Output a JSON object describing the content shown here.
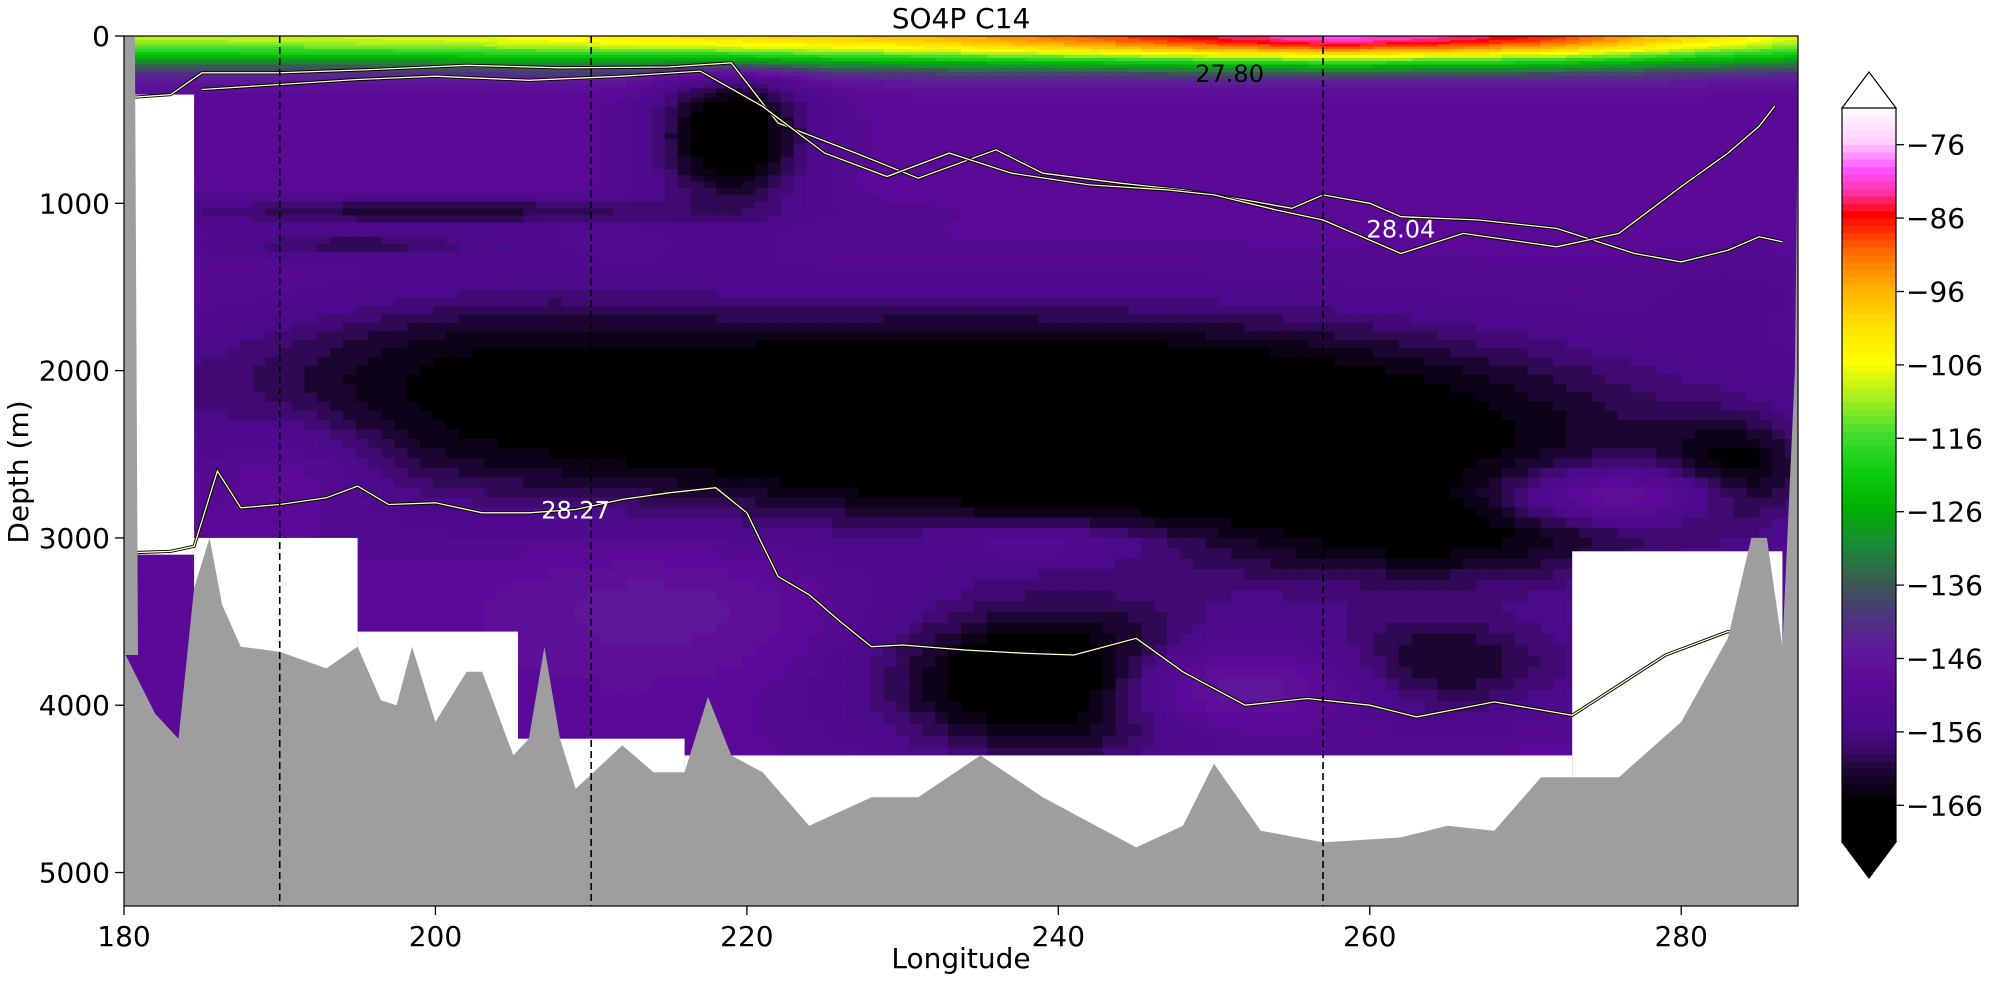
{
  "chart_data": {
    "type": "heatmap",
    "title": "SO4P C14",
    "xlabel": "Longitude",
    "ylabel": "Depth (m)",
    "xlim": [
      180,
      287.5
    ],
    "ylim": [
      5200,
      0
    ],
    "y_inverted": true,
    "x_ticks": [
      180,
      200,
      220,
      240,
      260,
      280
    ],
    "y_ticks": [
      0,
      1000,
      2000,
      3000,
      4000,
      5000
    ],
    "colorbar": {
      "ticks": [
        -76,
        -86,
        -96,
        -106,
        -116,
        -126,
        -136,
        -146,
        -156,
        -166
      ],
      "range": [
        -171,
        -71
      ],
      "extend": "both",
      "stops": [
        {
          "v": -171,
          "color": "#000000"
        },
        {
          "v": -166,
          "color": "#000000"
        },
        {
          "v": -162,
          "color": "#1a0630"
        },
        {
          "v": -159,
          "color": "#3a0a66"
        },
        {
          "v": -156,
          "color": "#4b0a8a"
        },
        {
          "v": -150,
          "color": "#5a0a96"
        },
        {
          "v": -145,
          "color": "#5f1a9a"
        },
        {
          "v": -140,
          "color": "#4a3a78"
        },
        {
          "v": -136,
          "color": "#3a5a50"
        },
        {
          "v": -131,
          "color": "#1a8a3a"
        },
        {
          "v": -126,
          "color": "#00b000"
        },
        {
          "v": -121,
          "color": "#10cc10"
        },
        {
          "v": -116,
          "color": "#40dd30"
        },
        {
          "v": -111,
          "color": "#a8ef20"
        },
        {
          "v": -106,
          "color": "#ffff00"
        },
        {
          "v": -101,
          "color": "#ffe000"
        },
        {
          "v": -96,
          "color": "#ffb000"
        },
        {
          "v": -91,
          "color": "#ff6a00"
        },
        {
          "v": -86,
          "color": "#ff0000"
        },
        {
          "v": -83,
          "color": "#ff30a0"
        },
        {
          "v": -80,
          "color": "#ff50ff"
        },
        {
          "v": -76,
          "color": "#ffd0ff"
        },
        {
          "v": -71,
          "color": "#ffffff"
        }
      ]
    },
    "contour_labels": [
      {
        "text": "27.80",
        "x": 251.0,
        "y": 220
      },
      {
        "text": "28.04",
        "x": 262.0,
        "y": 1150
      },
      {
        "text": "28.27",
        "x": 209.0,
        "y": 2830
      }
    ],
    "section_lines_x": [
      190,
      210,
      257
    ],
    "isopycnals": [
      {
        "name": "27.80",
        "points": [
          [
            180,
            370
          ],
          [
            183,
            350
          ],
          [
            185,
            220
          ],
          [
            190,
            220
          ],
          [
            196,
            200
          ],
          [
            202,
            175
          ],
          [
            208,
            190
          ],
          [
            215,
            185
          ],
          [
            219,
            160
          ],
          [
            222,
            520
          ],
          [
            227,
            700
          ],
          [
            231,
            850
          ],
          [
            236,
            680
          ],
          [
            239,
            820
          ],
          [
            244,
            880
          ],
          [
            248,
            920
          ],
          [
            252,
            980
          ],
          [
            255,
            1030
          ],
          [
            257,
            950
          ],
          [
            260,
            1000
          ],
          [
            262,
            1080
          ],
          [
            267,
            1100
          ],
          [
            272,
            1150
          ],
          [
            277,
            1300
          ],
          [
            280,
            1350
          ],
          [
            283,
            1280
          ],
          [
            285,
            1200
          ],
          [
            286.5,
            1230
          ]
        ]
      },
      {
        "name": "28.04",
        "points": [
          [
            185,
            320
          ],
          [
            190,
            290
          ],
          [
            195,
            260
          ],
          [
            200,
            240
          ],
          [
            206,
            265
          ],
          [
            212,
            240
          ],
          [
            217,
            210
          ],
          [
            221,
            420
          ],
          [
            225,
            700
          ],
          [
            229,
            840
          ],
          [
            233,
            700
          ],
          [
            237,
            820
          ],
          [
            242,
            890
          ],
          [
            247,
            920
          ],
          [
            250,
            950
          ],
          [
            254,
            1040
          ],
          [
            257,
            1100
          ],
          [
            262,
            1300
          ],
          [
            266,
            1180
          ],
          [
            272,
            1260
          ],
          [
            276,
            1180
          ],
          [
            280,
            900
          ],
          [
            283,
            700
          ],
          [
            285,
            540
          ],
          [
            286,
            420
          ]
        ]
      },
      {
        "name": "28.27",
        "points": [
          [
            180,
            3090
          ],
          [
            183,
            3080
          ],
          [
            184.5,
            3050
          ],
          [
            186,
            2600
          ],
          [
            187.5,
            2820
          ],
          [
            190,
            2800
          ],
          [
            193,
            2760
          ],
          [
            195,
            2690
          ],
          [
            197,
            2800
          ],
          [
            200,
            2790
          ],
          [
            203,
            2850
          ],
          [
            206,
            2850
          ],
          [
            209,
            2830
          ],
          [
            212,
            2770
          ],
          [
            215,
            2730
          ],
          [
            218,
            2700
          ],
          [
            220,
            2850
          ],
          [
            222,
            3230
          ],
          [
            224,
            3340
          ],
          [
            226,
            3500
          ],
          [
            228,
            3650
          ],
          [
            230,
            3640
          ],
          [
            234,
            3670
          ],
          [
            238,
            3690
          ],
          [
            241,
            3700
          ],
          [
            245,
            3600
          ],
          [
            248,
            3800
          ],
          [
            252,
            4000
          ],
          [
            256,
            3960
          ],
          [
            260,
            4000
          ],
          [
            263,
            4070
          ],
          [
            268,
            3980
          ],
          [
            273,
            4060
          ],
          [
            279,
            3700
          ],
          [
            283,
            3560
          ],
          [
            285,
            3580
          ]
        ]
      }
    ],
    "bathymetry": [
      [
        180,
        3680
      ],
      [
        182,
        4050
      ],
      [
        183.5,
        4200
      ],
      [
        184.5,
        3300
      ],
      [
        185.5,
        3000
      ],
      [
        186.3,
        3400
      ],
      [
        187.5,
        3650
      ],
      [
        190,
        3680
      ],
      [
        193,
        3780
      ],
      [
        195,
        3650
      ],
      [
        196.5,
        3970
      ],
      [
        197.5,
        4000
      ],
      [
        198.5,
        3650
      ],
      [
        200,
        4100
      ],
      [
        202,
        3800
      ],
      [
        203,
        3800
      ],
      [
        205,
        4300
      ],
      [
        206,
        4200
      ],
      [
        207,
        3650
      ],
      [
        208,
        4200
      ],
      [
        209,
        4500
      ],
      [
        212,
        4240
      ],
      [
        214,
        4400
      ],
      [
        216,
        4400
      ],
      [
        217.5,
        3950
      ],
      [
        219,
        4300
      ],
      [
        221,
        4400
      ],
      [
        224,
        4720
      ],
      [
        228,
        4550
      ],
      [
        231,
        4550
      ],
      [
        235,
        4300
      ],
      [
        239,
        4550
      ],
      [
        245,
        4850
      ],
      [
        248,
        4720
      ],
      [
        250,
        4350
      ],
      [
        253,
        4750
      ],
      [
        257,
        4820
      ],
      [
        262,
        4790
      ],
      [
        265,
        4720
      ],
      [
        268,
        4750
      ],
      [
        271,
        4430
      ],
      [
        276,
        4430
      ],
      [
        280,
        4100
      ],
      [
        283,
        3600
      ],
      [
        284.5,
        3000
      ],
      [
        285.5,
        3000
      ],
      [
        286.5,
        3650
      ],
      [
        287.3,
        2000
      ],
      [
        287.5,
        400
      ],
      [
        287.5,
        5200
      ],
      [
        180,
        5200
      ]
    ],
    "bathymetry_left_wall": [
      [
        180,
        0
      ],
      [
        180.7,
        0
      ],
      [
        180.9,
        3700
      ],
      [
        180,
        3700
      ]
    ],
    "data_mask_blocks": [
      {
        "x0": 180,
        "x1": 184.5,
        "y0": 350,
        "y1": 3100
      },
      {
        "x0": 184.5,
        "x1": 195,
        "y0": 3000,
        "y1": 5200
      },
      {
        "x0": 195,
        "x1": 205.3,
        "y0": 3560,
        "y1": 5200
      },
      {
        "x0": 205.3,
        "x1": 216,
        "y0": 4200,
        "y1": 5200
      },
      {
        "x0": 216,
        "x1": 273,
        "y0": 4300,
        "y1": 5200
      },
      {
        "x0": 273,
        "x1": 286.5,
        "y0": 3080,
        "y1": 5200
      }
    ],
    "field": {
      "background": -150,
      "surface": [
        {
          "x": 185,
          "v": -110
        },
        {
          "x": 200,
          "v": -108
        },
        {
          "x": 215,
          "v": -103
        },
        {
          "x": 230,
          "v": -98
        },
        {
          "x": 240,
          "v": -92
        },
        {
          "x": 250,
          "v": -85
        },
        {
          "x": 258,
          "v": -80
        },
        {
          "x": 265,
          "v": -83
        },
        {
          "x": 272,
          "v": -88
        },
        {
          "x": 280,
          "v": -100
        },
        {
          "x": 287,
          "v": -108
        }
      ],
      "blobs": [
        {
          "x": 219,
          "y": 600,
          "rx": 5,
          "ry": 450,
          "v": -170
        },
        {
          "x": 226,
          "y": 2200,
          "rx": 40,
          "ry": 550,
          "v": -170
        },
        {
          "x": 246,
          "y": 2400,
          "rx": 30,
          "ry": 600,
          "v": -172
        },
        {
          "x": 205,
          "y": 2100,
          "rx": 14,
          "ry": 500,
          "v": -166
        },
        {
          "x": 264,
          "y": 2900,
          "rx": 16,
          "ry": 400,
          "v": -168
        },
        {
          "x": 240,
          "y": 3850,
          "rx": 12,
          "ry": 500,
          "v": -172
        },
        {
          "x": 264,
          "y": 3750,
          "rx": 10,
          "ry": 350,
          "v": -164
        },
        {
          "x": 200,
          "y": 1050,
          "rx": 20,
          "ry": 90,
          "v": -162
        },
        {
          "x": 195,
          "y": 1250,
          "rx": 10,
          "ry": 90,
          "v": -160
        },
        {
          "x": 283,
          "y": 2600,
          "rx": 5,
          "ry": 300,
          "v": -168
        },
        {
          "x": 283,
          "y": 1550,
          "rx": 6,
          "ry": 250,
          "v": -154
        },
        {
          "x": 214,
          "y": 3450,
          "rx": 10,
          "ry": 380,
          "v": -146
        },
        {
          "x": 252,
          "y": 3900,
          "rx": 8,
          "ry": 300,
          "v": -146
        },
        {
          "x": 276,
          "y": 2750,
          "rx": 7,
          "ry": 180,
          "v": -148
        },
        {
          "x": 190,
          "y": 2700,
          "rx": 6,
          "ry": 400,
          "v": -150
        },
        {
          "x": 238,
          "y": 3050,
          "rx": 8,
          "ry": 120,
          "v": -152
        }
      ]
    }
  }
}
